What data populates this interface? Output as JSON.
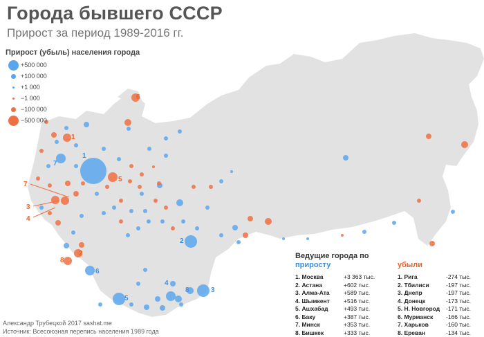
{
  "title": "Города бывшего СССР",
  "subtitle": "Прирост за период 1989-2016 гг.",
  "legend": {
    "title": "Прирост (убыль) населения города",
    "items": [
      {
        "label": "+500 000",
        "color": "#5aa6ec",
        "value": 500000
      },
      {
        "label": "+100 000",
        "color": "#5aa6ec",
        "value": 100000
      },
      {
        "label": "+1 000",
        "color": "#5aa6ec",
        "value": 1000
      },
      {
        "label": "−1 000",
        "color": "#ee7042",
        "value": -1000
      },
      {
        "label": "−100 000",
        "color": "#ee7042",
        "value": -100000
      },
      {
        "label": "−500 000",
        "color": "#ee7042",
        "value": -500000
      }
    ]
  },
  "colors": {
    "growth": "#3b8fe0",
    "decline": "#e8632a",
    "land": "#e2e2e2"
  },
  "leaders": {
    "title": "Ведущие города по",
    "growth_label": "приросту",
    "decline_label": "убыли",
    "growth": [
      {
        "city": "1. Москва",
        "value": "+3 363  тыс."
      },
      {
        "city": "2. Астана",
        "value": "+602 тыс."
      },
      {
        "city": "3. Алма-Ата",
        "value": "+589 тыс."
      },
      {
        "city": "4. Шымкент",
        "value": "+516 тыс."
      },
      {
        "city": "5. Ашхабад",
        "value": "+493 тыс."
      },
      {
        "city": "6. Баку",
        "value": "+387 тыс."
      },
      {
        "city": "7. Минск",
        "value": "+353 тыс."
      },
      {
        "city": "8. Бишкек",
        "value": "+333 тыс."
      }
    ],
    "decline": [
      {
        "city": "1. Рига",
        "value": "-274 тыс."
      },
      {
        "city": "2. Тбилиси",
        "value": "-197 тыс."
      },
      {
        "city": "3. Днепр",
        "value": "-197 тыс."
      },
      {
        "city": "4. Донецк",
        "value": "-173 тыс."
      },
      {
        "city": "5. Н. Новгород",
        "value": "-171 тыс."
      },
      {
        "city": "6. Мурманск",
        "value": "-166 тыс."
      },
      {
        "city": "7. Харьков",
        "value": "-160 тыс."
      },
      {
        "city": "8. Ереван",
        "value": "-134 тыс."
      }
    ]
  },
  "map_labels": {
    "blue": [
      "1",
      "2",
      "3",
      "4",
      "5",
      "6",
      "7",
      "8"
    ],
    "orange": [
      "1",
      "2",
      "3",
      "4",
      "5",
      "6",
      "7",
      "8"
    ]
  },
  "credits": {
    "author": "Александр Трубецкой 2017 sashat.me",
    "source": "Источник: Всесоюзная перепись населения 1989 года"
  }
}
